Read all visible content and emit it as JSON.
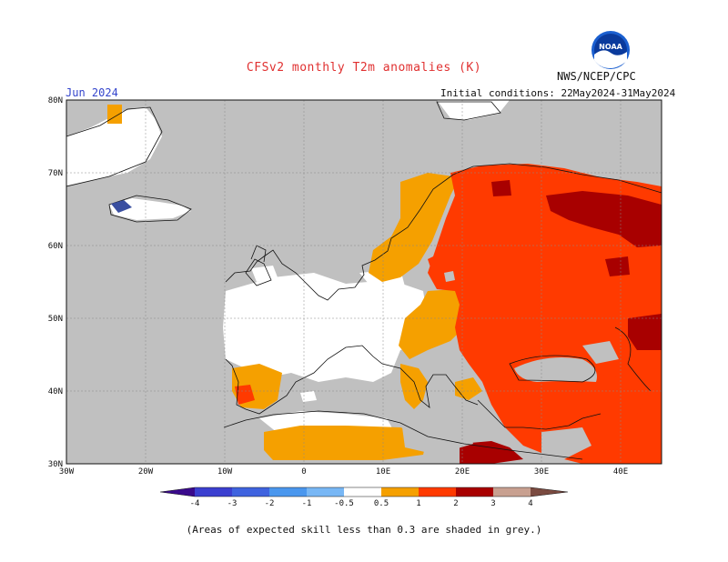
{
  "header": {
    "title": "CFSv2 monthly T2m anomalies (K)",
    "org": "NWS/NCEP/CPC",
    "month": "Jun 2024",
    "initial_conditions": "Initial conditions: 22May2024-31May2024",
    "logo_text": "NOAA"
  },
  "axes": {
    "x_ticks": [
      "30W",
      "20W",
      "10W",
      "0",
      "10E",
      "20E",
      "30E",
      "40E"
    ],
    "y_ticks": [
      "80N",
      "70N",
      "60N",
      "50N",
      "40N",
      "30N"
    ]
  },
  "colorbar": {
    "labels": [
      "-4",
      "-3",
      "-2",
      "-1",
      "-0.5",
      "0.5",
      "1",
      "2",
      "3",
      "4"
    ],
    "colors": [
      "#3a0a8c",
      "#3b3fd0",
      "#3f63df",
      "#4a97ee",
      "#78b7f5",
      "#ffffff",
      "#f5a000",
      "#ff3a00",
      "#a80000",
      "#c8a090",
      "#7a4a40"
    ]
  },
  "footnote": "(Areas of expected skill less than 0.3 are shaded in grey.)"
}
